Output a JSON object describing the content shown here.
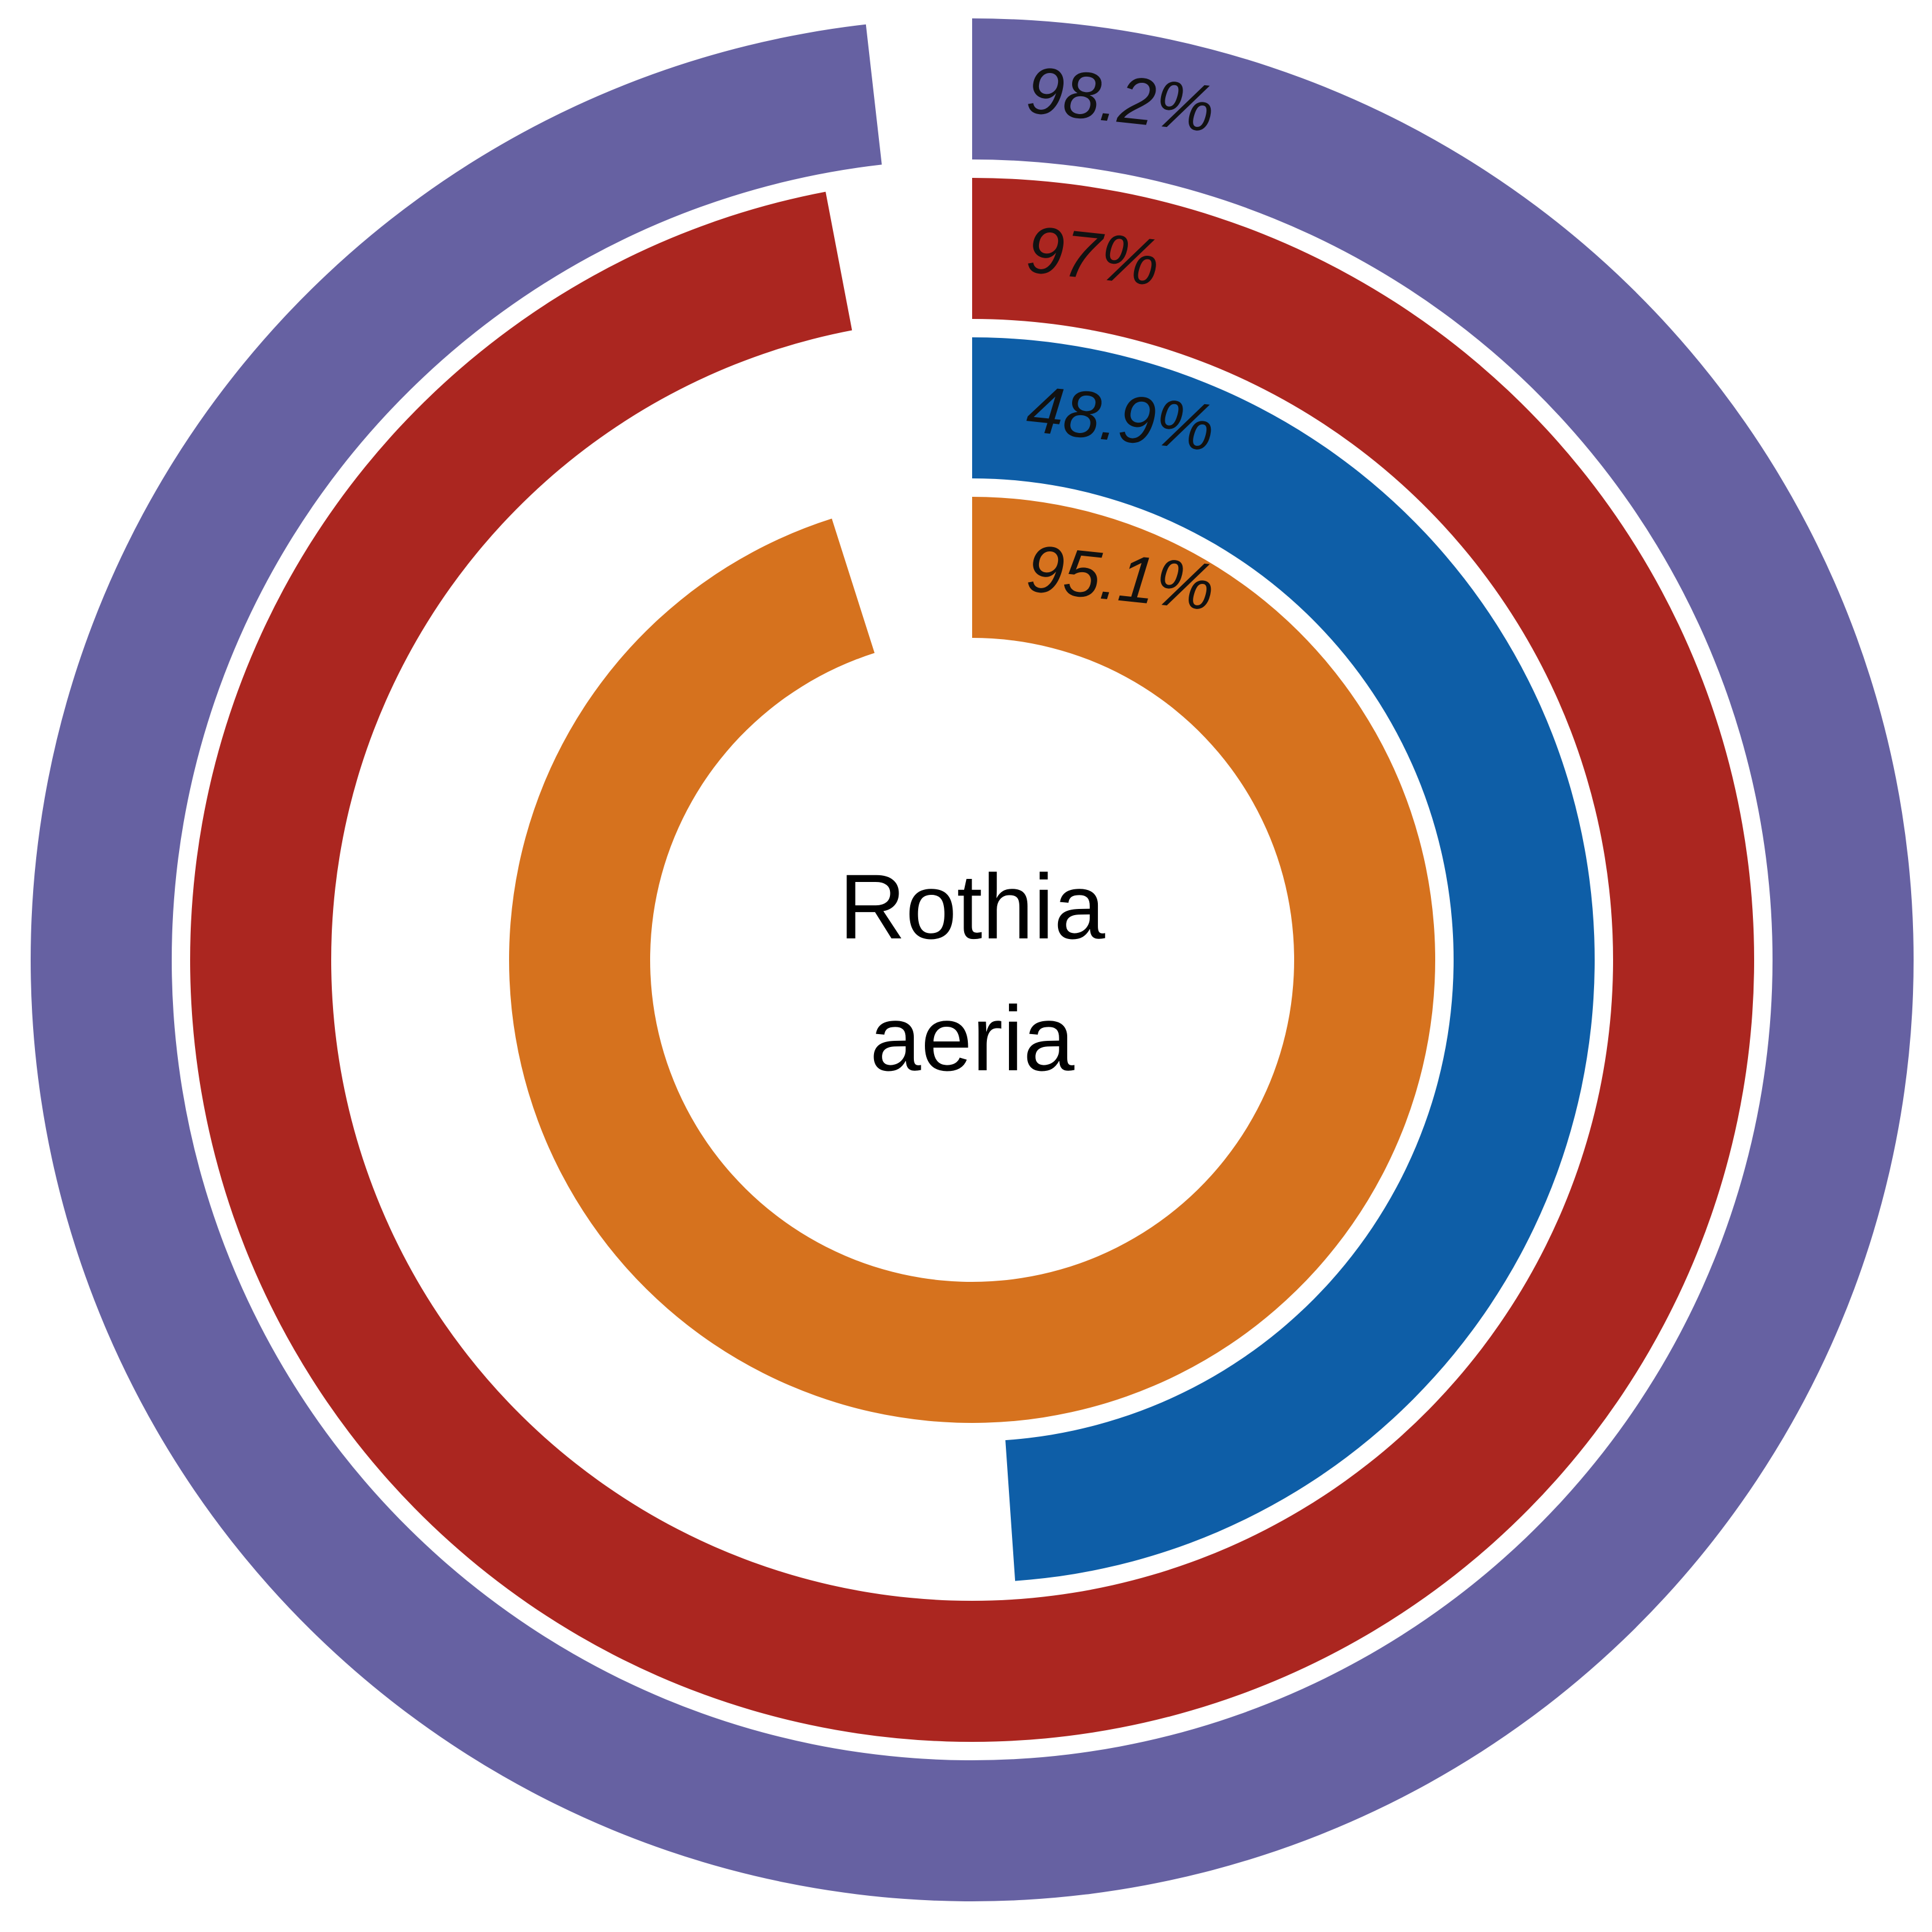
{
  "chart_data": {
    "type": "radial-bar",
    "center_label_lines": [
      "Rothia",
      "aeria"
    ],
    "max_value": 100,
    "unit": "%",
    "series": [
      {
        "value": 98.2,
        "label": "98.2%",
        "color": "#6661A2"
      },
      {
        "value": 97,
        "label": "97%",
        "color": "#AB2620"
      },
      {
        "value": 48.9,
        "label": "48.9%",
        "color": "#0E5EA7"
      },
      {
        "value": 95.1,
        "label": "95.1%",
        "color": "#D6721E"
      }
    ]
  }
}
